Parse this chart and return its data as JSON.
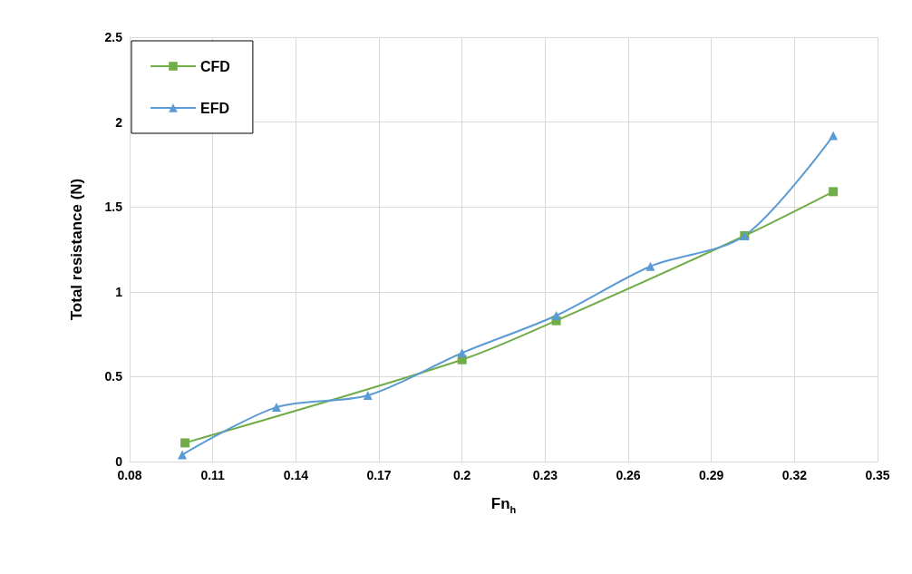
{
  "chart_data": {
    "type": "line",
    "xlabel": "Fn$_{h}$",
    "ylabel": "Total resistance (N)",
    "xlim": [
      0.08,
      0.35
    ],
    "xticks": [
      0.08,
      0.11,
      0.14,
      0.17,
      0.2,
      0.23,
      0.26,
      0.29,
      0.32,
      0.35
    ],
    "ylim": [
      0,
      2.5
    ],
    "yticks": [
      0,
      0.5,
      1,
      1.5,
      2,
      2.5
    ],
    "grid": true,
    "legend": "top left",
    "series": [
      {
        "name": "CFD",
        "color": "#70ad47",
        "marker": "square",
        "x": [
          0.1,
          0.2,
          0.234,
          0.302,
          0.334
        ],
        "values": [
          0.11,
          0.6,
          0.83,
          1.33,
          1.59
        ]
      },
      {
        "name": "EFD",
        "color": "#5b9bd5",
        "marker": "triangle",
        "x": [
          0.099,
          0.133,
          0.166,
          0.2,
          0.234,
          0.268,
          0.302,
          0.334
        ],
        "values": [
          0.04,
          0.32,
          0.39,
          0.64,
          0.86,
          1.15,
          1.33,
          1.92
        ]
      }
    ]
  }
}
